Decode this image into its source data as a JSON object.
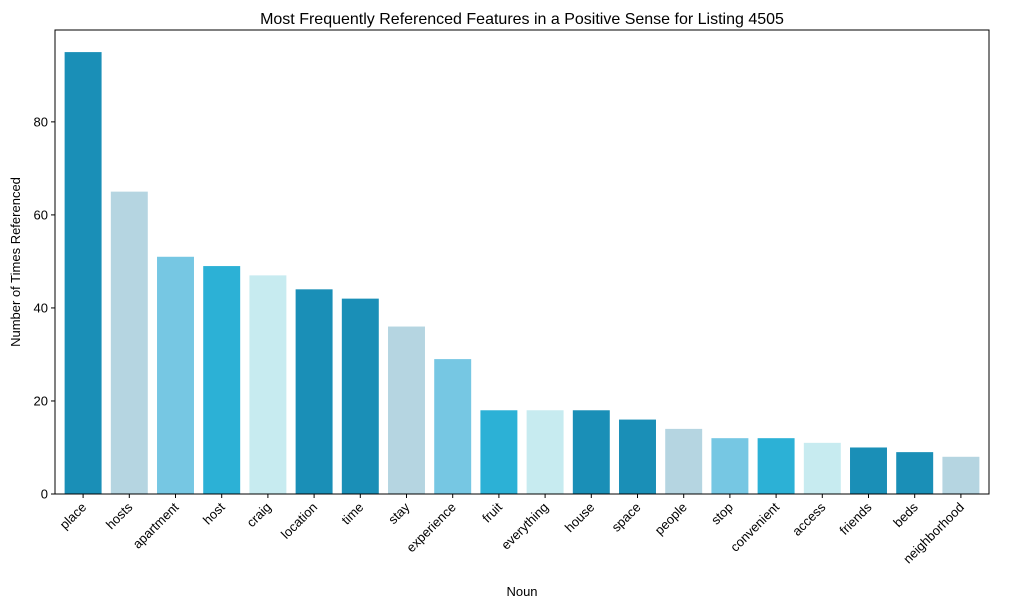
{
  "chart_data": {
    "type": "bar",
    "title": "Most Frequently Referenced Features in a Positive Sense for Listing 4505",
    "xlabel": "Noun",
    "ylabel": "Number of Times Referenced",
    "categories": [
      "place",
      "hosts",
      "apartment",
      "host",
      "craig",
      "location",
      "time",
      "stay",
      "experience",
      "fruit",
      "everything",
      "house",
      "space",
      "people",
      "stop",
      "convenient",
      "access",
      "friends",
      "beds",
      "neighborhood"
    ],
    "values": [
      95,
      65,
      51,
      49,
      47,
      44,
      42,
      36,
      29,
      18,
      18,
      18,
      16,
      14,
      12,
      12,
      11,
      10,
      9,
      8
    ],
    "colors": [
      "#1a8fb7",
      "#b5d5e1",
      "#76c7e3",
      "#2cb1d6",
      "#c7ebf0",
      "#1a8fb7",
      "#1a8fb7",
      "#b5d5e1",
      "#76c7e3",
      "#2cb1d6",
      "#c7ebf0",
      "#1a8fb7",
      "#1a8fb7",
      "#b5d5e1",
      "#76c7e3",
      "#2cb1d6",
      "#c7ebf0",
      "#1a8fb7",
      "#1a8fb7",
      "#b5d5e1"
    ],
    "ylim": [
      0,
      99.75
    ],
    "yticks": [
      0,
      20,
      40,
      60,
      80
    ],
    "grid": false,
    "legend": "none"
  }
}
